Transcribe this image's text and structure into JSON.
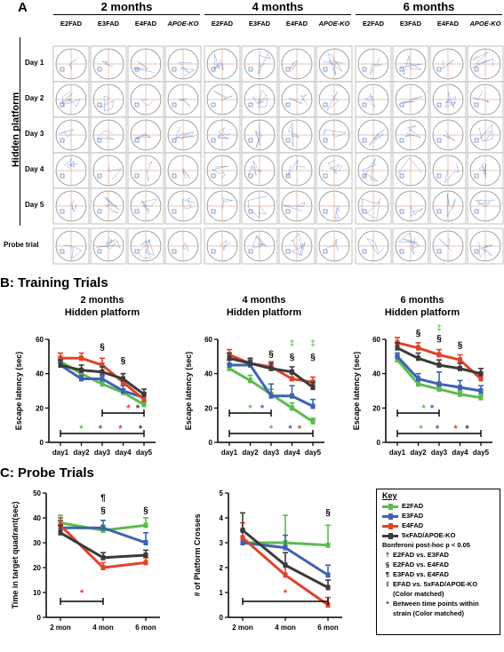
{
  "panel_a": {
    "label": "A",
    "month_headers": [
      "2 months",
      "4 months",
      "6 months"
    ],
    "strains": [
      "E2FAD",
      "E3FAD",
      "E4FAD",
      "APOE-KO"
    ],
    "row_group_label": "Hidden platform",
    "rows": [
      "Day 1",
      "Day 2",
      "Day 3",
      "Day 4",
      "Day 5",
      "Probe trial"
    ]
  },
  "panel_b": {
    "label": "B: Training Trials"
  },
  "panel_c": {
    "label": "C: Probe Trials"
  },
  "colors": {
    "E2FAD": "#5dbb4f",
    "E3FAD": "#3f62b3",
    "E4FAD": "#e0432b",
    "KO": "#3b3b3b"
  },
  "key": {
    "title": "Key",
    "series": [
      {
        "name": "E2FAD",
        "color": "#5dbb4f"
      },
      {
        "name": "E3FAD",
        "color": "#3f62b3"
      },
      {
        "name": "E4FAD",
        "color": "#e0432b"
      },
      {
        "name": "5xFAD/APOE-KO",
        "color": "#3b3b3b"
      }
    ],
    "stats_title": "Bonferoni post-hoc p < 0.05",
    "notes": [
      {
        "symbol": "†",
        "text": "E2FAD vs. E3FAD"
      },
      {
        "symbol": "§",
        "text": "E2FAD vs. E4FAD"
      },
      {
        "symbol": "¶",
        "text": "E3FAD vs. E4FAD"
      },
      {
        "symbol": "‡",
        "text": "EFAD vs. 5xFAD/APOE-KO"
      },
      {
        "symbol": "",
        "text": "(Color matched)"
      },
      {
        "symbol": "*",
        "text": "Between time points within"
      },
      {
        "symbol": "",
        "text": "strain (Color matched)"
      }
    ]
  },
  "chart_data": [
    {
      "type": "line",
      "title": "2 months",
      "subtitle": "Hidden platform",
      "xlabel": "",
      "ylabel": "Escape latency (sec)",
      "ylim": [
        0,
        60
      ],
      "yticks": [
        0,
        20,
        40,
        60
      ],
      "x": [
        "day1",
        "day2",
        "day3",
        "day4",
        "day5"
      ],
      "series": [
        {
          "name": "E2FAD",
          "values": [
            47,
            40,
            34,
            29,
            22
          ],
          "err": [
            2,
            2,
            2,
            2,
            2
          ]
        },
        {
          "name": "E3FAD",
          "values": [
            45,
            37,
            37,
            30,
            26
          ],
          "err": [
            2,
            2,
            2,
            3,
            2
          ]
        },
        {
          "name": "E4FAD",
          "values": [
            49,
            49,
            45,
            35,
            25
          ],
          "err": [
            3,
            3,
            4,
            5,
            4
          ]
        },
        {
          "name": "5xFAD/APOE-KO",
          "values": [
            45,
            42,
            41,
            37,
            28
          ],
          "err": [
            3,
            3,
            3,
            3,
            3
          ]
        }
      ],
      "annotations": [
        {
          "text": "§",
          "x": "day3",
          "y": 54
        },
        {
          "text": "§",
          "x": "day4",
          "y": 46
        }
      ]
    },
    {
      "type": "line",
      "title": "4 months",
      "subtitle": "Hidden platform",
      "xlabel": "",
      "ylabel": "Escape latency (sec)",
      "ylim": [
        0,
        60
      ],
      "yticks": [
        0,
        20,
        40,
        60
      ],
      "x": [
        "day1",
        "day2",
        "day3",
        "day4",
        "day5"
      ],
      "series": [
        {
          "name": "E2FAD",
          "values": [
            43,
            36,
            28,
            20,
            12
          ],
          "err": [
            3,
            3,
            3,
            3,
            2
          ]
        },
        {
          "name": "E3FAD",
          "values": [
            45,
            45,
            27,
            27,
            21
          ],
          "err": [
            3,
            3,
            7,
            6,
            4
          ]
        },
        {
          "name": "E4FAD",
          "values": [
            51,
            46,
            44,
            37,
            35
          ],
          "err": [
            3,
            3,
            3,
            3,
            3
          ]
        },
        {
          "name": "5xFAD/APOE-KO",
          "values": [
            49,
            46,
            43,
            41,
            32
          ],
          "err": [
            3,
            3,
            3,
            3,
            3
          ]
        }
      ],
      "annotations": [
        {
          "text": "§",
          "x": "day3",
          "y": 50
        },
        {
          "text": "‡",
          "x": "day4",
          "y": 56
        },
        {
          "text": "§",
          "x": "day4",
          "y": 48
        },
        {
          "text": "‡",
          "x": "day5",
          "y": 56
        },
        {
          "text": "§",
          "x": "day5",
          "y": 48
        }
      ]
    },
    {
      "type": "line",
      "title": "6 months",
      "subtitle": "Hidden platform",
      "xlabel": "",
      "ylabel": "Escape latency (sec)",
      "ylim": [
        0,
        60
      ],
      "yticks": [
        0,
        20,
        40,
        60
      ],
      "x": [
        "day1",
        "day2",
        "day3",
        "day4",
        "day5"
      ],
      "series": [
        {
          "name": "E2FAD",
          "values": [
            48,
            34,
            31,
            28,
            26
          ],
          "err": [
            2,
            2,
            2,
            2,
            2
          ]
        },
        {
          "name": "E3FAD",
          "values": [
            50,
            37,
            34,
            32,
            30
          ],
          "err": [
            2,
            3,
            7,
            4,
            3
          ]
        },
        {
          "name": "E4FAD",
          "values": [
            58,
            55,
            51,
            48,
            37
          ],
          "err": [
            3,
            3,
            3,
            3,
            3
          ]
        },
        {
          "name": "5xFAD/APOE-KO",
          "values": [
            55,
            49,
            45,
            43,
            40
          ],
          "err": [
            3,
            3,
            3,
            3,
            3
          ]
        }
      ],
      "annotations": [
        {
          "text": "§",
          "x": "day2",
          "y": 62
        },
        {
          "text": "‡",
          "x": "day3",
          "y": 65
        },
        {
          "text": "§",
          "x": "day3",
          "y": 59
        },
        {
          "text": "§",
          "x": "day4",
          "y": 55
        }
      ]
    },
    {
      "type": "line",
      "title": "",
      "xlabel": "",
      "ylabel": "Time in target quadrant(sec)",
      "ylim": [
        0,
        50
      ],
      "yticks": [
        0,
        10,
        20,
        30,
        40,
        50
      ],
      "x": [
        "2 mon",
        "4 mon",
        "6 mon"
      ],
      "series": [
        {
          "name": "E2FAD",
          "values": [
            38,
            35,
            37
          ],
          "err": [
            3,
            2,
            3
          ]
        },
        {
          "name": "E3FAD",
          "values": [
            36,
            36,
            30
          ],
          "err": [
            3,
            3,
            4
          ]
        },
        {
          "name": "E4FAD",
          "values": [
            37,
            20,
            22
          ],
          "err": [
            3,
            2,
            2
          ]
        },
        {
          "name": "5xFAD/APOE-KO",
          "values": [
            34,
            24,
            25
          ],
          "err": [
            3,
            2,
            2
          ]
        }
      ],
      "annotations": [
        {
          "text": "¶",
          "x": "4 mon",
          "y": 47
        },
        {
          "text": "§",
          "x": "4 mon",
          "y": 42
        },
        {
          "text": "§",
          "x": "6 mon",
          "y": 42
        }
      ]
    },
    {
      "type": "line",
      "title": "",
      "xlabel": "",
      "ylabel": "# of Platform Crosses",
      "ylim": [
        0,
        5
      ],
      "yticks": [
        0,
        1,
        2,
        3,
        4,
        5
      ],
      "x": [
        "2 mon",
        "4 mon",
        "6 mon"
      ],
      "series": [
        {
          "name": "E2FAD",
          "values": [
            3,
            3,
            2.9
          ],
          "err": [
            0.5,
            1.1,
            0.8
          ]
        },
        {
          "name": "E3FAD",
          "values": [
            3,
            2.8,
            1.7
          ],
          "err": [
            0.5,
            0.5,
            0.4
          ]
        },
        {
          "name": "E4FAD",
          "values": [
            3.2,
            1.7,
            0.5
          ],
          "err": [
            0.6,
            0.4,
            0.3
          ]
        },
        {
          "name": "5xFAD/APOE-KO",
          "values": [
            3.5,
            2.1,
            1.2
          ],
          "err": [
            0.7,
            0.5,
            0.3
          ]
        }
      ],
      "annotations": [
        {
          "text": "§",
          "x": "6 mon",
          "y": 4.1
        }
      ]
    }
  ]
}
